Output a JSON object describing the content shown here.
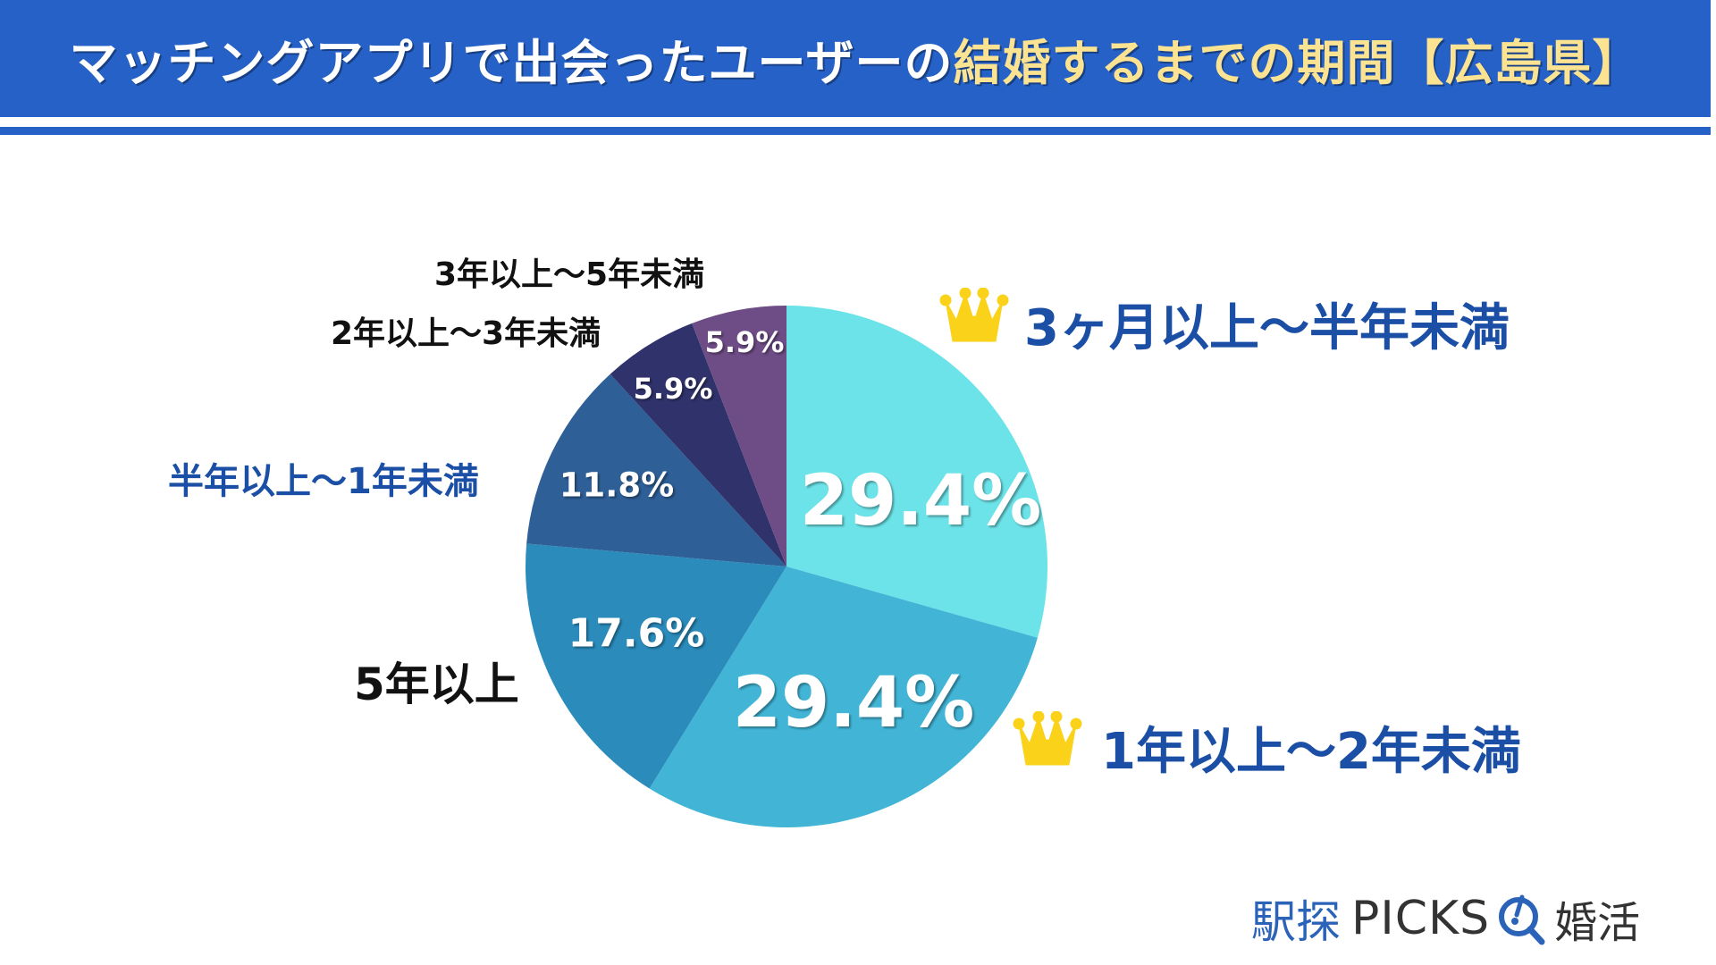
{
  "header": {
    "title_white": "マッチングアプリで出会ったユーザーの",
    "title_yellow": "結婚するまでの期間【広島県】",
    "bg_color": "#2561C7",
    "highlight_color": "#FBE392"
  },
  "chart_data": {
    "type": "pie",
    "title": "マッチングアプリで出会ったユーザーの結婚するまでの期間【広島県】",
    "start_angle": "12 o'clock, clockwise",
    "categories": [
      "3ヶ月以上〜半年未満",
      "1年以上〜2年未満",
      "5年以上",
      "半年以上〜1年未満",
      "2年以上〜3年未満",
      "3年以上〜5年未満"
    ],
    "values": [
      29.4,
      29.4,
      17.6,
      11.8,
      5.9,
      5.9
    ],
    "value_labels": [
      "29.4%",
      "29.4%",
      "17.6%",
      "11.8%",
      "5.9%",
      "5.9%"
    ],
    "colors": [
      "#6CE3E8",
      "#42B5D6",
      "#2B8BBB",
      "#2E5F96",
      "#30336B",
      "#6E4C85"
    ],
    "unit": "%",
    "highlighted_top": [
      "3ヶ月以上〜半年未満",
      "1年以上〜2年未満"
    ]
  },
  "labels": {
    "l1": "3ヶ月以上〜半年未満",
    "l2": "1年以上〜2年未満",
    "l3": "5年以上",
    "l4": "半年以上〜1年未満",
    "l5": "2年以上〜3年未満",
    "l6": "3年以上〜5年未満"
  },
  "slice_labels": {
    "s1": "29.4%",
    "s2": "29.4%",
    "s3": "17.6%",
    "s4": "11.8%",
    "s5": "5.9%",
    "s6": "5.9%"
  },
  "icons": {
    "crown": "crown-icon",
    "logo_mark": "magnifier-icon"
  },
  "logo": {
    "jp": "駅探",
    "en": "PICKS",
    "suffix": "婚活"
  }
}
